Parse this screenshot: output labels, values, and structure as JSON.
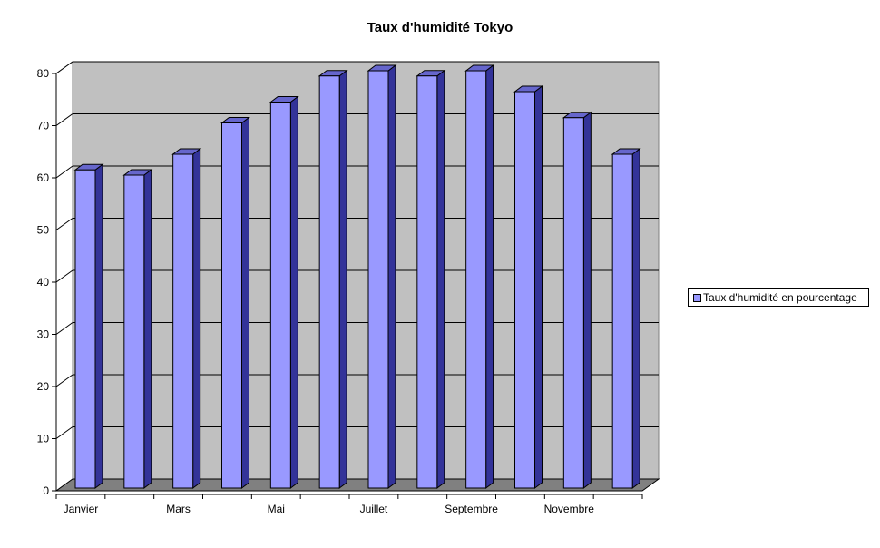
{
  "chart_data": {
    "type": "bar",
    "title": "Taux d'humidité Tokyo",
    "categories": [
      "Janvier",
      "",
      "Mars",
      "",
      "Mai",
      "",
      "Juillet",
      "",
      "Septembre",
      "",
      "Novembre",
      ""
    ],
    "series": [
      {
        "name": "Taux d'humidité en pourcentage",
        "values": [
          61,
          60,
          64,
          70,
          74,
          79,
          80,
          79,
          80,
          76,
          71,
          64
        ]
      }
    ],
    "ylim": [
      0,
      80
    ],
    "yticks": [
      0,
      10,
      20,
      30,
      40,
      50,
      60,
      70,
      80
    ],
    "grid": true,
    "legend_position": "right",
    "colors": {
      "bar_front": "#9999ff",
      "bar_side": "#333399",
      "bar_top": "#6666cc",
      "plot_back": "#c0c0c0",
      "plot_wall": "#ffffff",
      "plot_floor": "#808080"
    }
  }
}
